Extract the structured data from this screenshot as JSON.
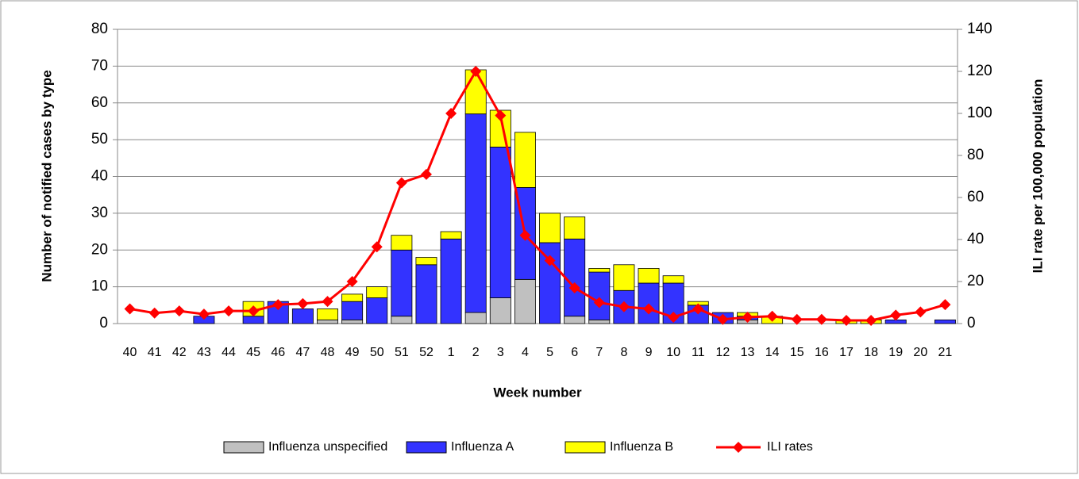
{
  "chart_data": {
    "type": "bar",
    "stacked": true,
    "x_label": "Week number",
    "y_label": "Number of notified cases  by type",
    "y2_label": "ILI rate per 100,000 population",
    "categories": [
      "40",
      "41",
      "42",
      "43",
      "44",
      "45",
      "46",
      "47",
      "48",
      "49",
      "50",
      "51",
      "52",
      "1",
      "2",
      "3",
      "4",
      "5",
      "6",
      "7",
      "8",
      "9",
      "10",
      "11",
      "12",
      "13",
      "14",
      "15",
      "16",
      "17",
      "18",
      "19",
      "20",
      "21"
    ],
    "series": [
      {
        "name": "Influenza unspecified",
        "type": "bar",
        "color": "#c0c0c0",
        "values": [
          0,
          0,
          0,
          0,
          0,
          0,
          0,
          0,
          1,
          1,
          0,
          2,
          0,
          0,
          3,
          7,
          12,
          0,
          2,
          1,
          0,
          0,
          0,
          0,
          0,
          1,
          0,
          0,
          0,
          0,
          0,
          0,
          0,
          0
        ]
      },
      {
        "name": "Influenza A",
        "type": "bar",
        "color": "#3333ff",
        "values": [
          0,
          0,
          0,
          2,
          0,
          2,
          6,
          4,
          0,
          5,
          7,
          18,
          16,
          23,
          54,
          41,
          25,
          22,
          21,
          13,
          9,
          11,
          11,
          5,
          3,
          1,
          0,
          0,
          0,
          0,
          0,
          1,
          0,
          1
        ]
      },
      {
        "name": "Influenza B",
        "type": "bar",
        "color": "#ffff00",
        "values": [
          0,
          0,
          0,
          0,
          0,
          4,
          0,
          0,
          3,
          2,
          3,
          4,
          2,
          2,
          12,
          10,
          15,
          8,
          6,
          1,
          7,
          4,
          2,
          1,
          0,
          1,
          2,
          0,
          0,
          1,
          1,
          0,
          0,
          0
        ]
      },
      {
        "name": "ILI rates",
        "type": "line",
        "axis": "y2",
        "color": "#ff0000",
        "values": [
          7,
          5,
          6,
          4.5,
          6,
          6,
          9,
          9.5,
          10.5,
          20,
          36.5,
          67,
          71,
          100,
          120,
          99,
          42,
          30,
          17,
          10,
          8,
          7,
          3,
          7,
          2,
          3,
          3.5,
          2,
          2,
          1.5,
          1.5,
          4,
          5.5,
          9
        ]
      }
    ],
    "ylim": [
      0,
      80
    ],
    "yticks": [
      0,
      10,
      20,
      30,
      40,
      50,
      60,
      70,
      80
    ],
    "y2lim": [
      0,
      140
    ],
    "y2ticks": [
      0,
      20,
      40,
      60,
      80,
      100,
      120,
      140
    ],
    "grid": true,
    "legend": "bottom"
  }
}
